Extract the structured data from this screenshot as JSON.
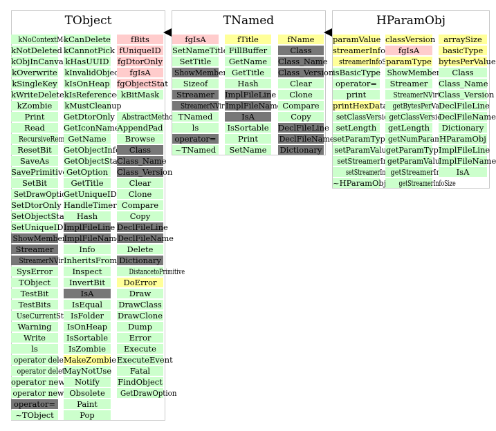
{
  "colors": {
    "public_method": "#ccffcc",
    "protected_method": "#ffcccc",
    "data_member": "#ffff99",
    "class_info": "#777777",
    "border": "#c8c8c8",
    "arrow": "#000000"
  },
  "boxes": [
    {
      "name": "TObject",
      "columns": [
        {
          "items": [
            [
              "kNoContextMenu",
              "green"
            ],
            [
              "kNotDeleted",
              "green"
            ],
            [
              "kObjInCanvas",
              "green"
            ],
            [
              "kOverwrite",
              "green"
            ],
            [
              "kSingleKey",
              "green"
            ],
            [
              "kWriteDelete",
              "green"
            ],
            [
              "kZombie",
              "green"
            ],
            [
              "Print",
              "green"
            ],
            [
              "Read",
              "green"
            ],
            [
              "RecursiveRemove",
              "green"
            ],
            [
              "ResetBit",
              "green"
            ],
            [
              "SaveAs",
              "green"
            ],
            [
              "SavePrimitive",
              "green"
            ],
            [
              "SetBit",
              "green"
            ],
            [
              "SetDrawOption",
              "green"
            ],
            [
              "SetDtorOnly",
              "green"
            ],
            [
              "SetObjectStat",
              "green"
            ],
            [
              "SetUniqueID",
              "green"
            ],
            [
              "ShowMembers",
              "gray"
            ],
            [
              "Streamer",
              "gray"
            ],
            [
              "StreamerNVirtual",
              "gray"
            ],
            [
              "SysError",
              "green"
            ],
            [
              "TObject",
              "green"
            ],
            [
              "TestBit",
              "green"
            ],
            [
              "TestBits",
              "green"
            ],
            [
              "UseCurrentStyle",
              "green"
            ],
            [
              "Warning",
              "green"
            ],
            [
              "Write",
              "green"
            ],
            [
              "ls",
              "green"
            ],
            [
              "operator delete",
              "green"
            ],
            [
              "operator delete[]",
              "green"
            ],
            [
              "operator new",
              "green"
            ],
            [
              "operator new[]",
              "green"
            ],
            [
              "operator=",
              "gray"
            ],
            [
              "~TObject",
              "green"
            ]
          ]
        },
        {
          "items": [
            [
              "kCanDelete",
              "green"
            ],
            [
              "kCannotPick",
              "green"
            ],
            [
              "kHasUUID",
              "green"
            ],
            [
              "kInvalidObject",
              "green"
            ],
            [
              "kIsOnHeap",
              "green"
            ],
            [
              "kIsReferenced",
              "green"
            ],
            [
              "kMustCleanup",
              "green"
            ],
            [
              "GetDtorOnly",
              "green"
            ],
            [
              "GetIconName",
              "green"
            ],
            [
              "GetName",
              "green"
            ],
            [
              "GetObjectInfo",
              "green"
            ],
            [
              "GetObjectStat",
              "green"
            ],
            [
              "GetOption",
              "green"
            ],
            [
              "GetTitle",
              "green"
            ],
            [
              "GetUniqueID",
              "green"
            ],
            [
              "HandleTimer",
              "green"
            ],
            [
              "Hash",
              "green"
            ],
            [
              "ImplFileLine",
              "gray"
            ],
            [
              "ImplFileName",
              "gray"
            ],
            [
              "Info",
              "green"
            ],
            [
              "InheritsFrom",
              "green"
            ],
            [
              "Inspect",
              "green"
            ],
            [
              "InvertBit",
              "green"
            ],
            [
              "IsA",
              "gray"
            ],
            [
              "IsEqual",
              "green"
            ],
            [
              "IsFolder",
              "green"
            ],
            [
              "IsOnHeap",
              "green"
            ],
            [
              "IsSortable",
              "green"
            ],
            [
              "IsZombie",
              "green"
            ],
            [
              "MakeZombie",
              "yellow"
            ],
            [
              "MayNotUse",
              "green"
            ],
            [
              "Notify",
              "green"
            ],
            [
              "Obsolete",
              "green"
            ],
            [
              "Paint",
              "green"
            ],
            [
              "Pop",
              "green"
            ]
          ]
        },
        {
          "items": [
            [
              "fBits",
              "pink"
            ],
            [
              "fUniqueID",
              "pink"
            ],
            [
              "fgDtorOnly",
              "pink"
            ],
            [
              "fgIsA",
              "pink"
            ],
            [
              "fgObjectStat",
              "pink"
            ],
            [
              "kBitMask",
              "green"
            ],
            [
              "",
              ""
            ],
            [
              "AbstractMethod",
              "green"
            ],
            [
              "AppendPad",
              "green"
            ],
            [
              "Browse",
              "green"
            ],
            [
              "Class",
              "gray"
            ],
            [
              "Class_Name",
              "gray"
            ],
            [
              "Class_Version",
              "gray"
            ],
            [
              "Clear",
              "green"
            ],
            [
              "Clone",
              "green"
            ],
            [
              "Compare",
              "green"
            ],
            [
              "Copy",
              "green"
            ],
            [
              "DeclFileLine",
              "gray"
            ],
            [
              "DeclFileName",
              "gray"
            ],
            [
              "Delete",
              "green"
            ],
            [
              "Dictionary",
              "gray"
            ],
            [
              "DistancetoPrimitive",
              "green"
            ],
            [
              "DoError",
              "yellow"
            ],
            [
              "Draw",
              "green"
            ],
            [
              "DrawClass",
              "green"
            ],
            [
              "DrawClone",
              "green"
            ],
            [
              "Dump",
              "green"
            ],
            [
              "Error",
              "green"
            ],
            [
              "Execute",
              "green"
            ],
            [
              "ExecuteEvent",
              "green"
            ],
            [
              "Fatal",
              "green"
            ],
            [
              "FindObject",
              "green"
            ],
            [
              "GetDrawOption",
              "green"
            ]
          ]
        }
      ]
    },
    {
      "name": "TNamed",
      "columns": [
        {
          "items": [
            [
              "fgIsA",
              "pink"
            ],
            [
              "SetNameTitle",
              "green"
            ],
            [
              "SetTitle",
              "green"
            ],
            [
              "ShowMembers",
              "gray"
            ],
            [
              "Sizeof",
              "green"
            ],
            [
              "Streamer",
              "gray"
            ],
            [
              "StreamerNVirtual",
              "gray"
            ],
            [
              "TNamed",
              "green"
            ],
            [
              "ls",
              "green"
            ],
            [
              "operator=",
              "gray"
            ],
            [
              "~TNamed",
              "green"
            ]
          ]
        },
        {
          "items": [
            [
              "fTitle",
              "yellow"
            ],
            [
              "FillBuffer",
              "green"
            ],
            [
              "GetName",
              "green"
            ],
            [
              "GetTitle",
              "green"
            ],
            [
              "Hash",
              "green"
            ],
            [
              "ImplFileLine",
              "gray"
            ],
            [
              "ImplFileName",
              "gray"
            ],
            [
              "IsA",
              "gray"
            ],
            [
              "IsSortable",
              "green"
            ],
            [
              "Print",
              "green"
            ],
            [
              "SetName",
              "green"
            ]
          ]
        },
        {
          "items": [
            [
              "fName",
              "yellow"
            ],
            [
              "Class",
              "gray"
            ],
            [
              "Class_Name",
              "gray"
            ],
            [
              "Class_Version",
              "gray"
            ],
            [
              "Clear",
              "green"
            ],
            [
              "Clone",
              "green"
            ],
            [
              "Compare",
              "green"
            ],
            [
              "Copy",
              "green"
            ],
            [
              "DeclFileLine",
              "gray"
            ],
            [
              "DeclFileName",
              "gray"
            ],
            [
              "Dictionary",
              "gray"
            ]
          ]
        }
      ]
    },
    {
      "name": "HParamObj",
      "columns": [
        {
          "items": [
            [
              "paramValue",
              "yellow"
            ],
            [
              "streamerInfo",
              "yellow"
            ],
            [
              "streamerInfoSize",
              "yellow"
            ],
            [
              "isBasicType",
              "green"
            ],
            [
              "operator=",
              "green"
            ],
            [
              "print",
              "green"
            ],
            [
              "printHexData",
              "yellow"
            ],
            [
              "setClassVersion",
              "green"
            ],
            [
              "setLength",
              "green"
            ],
            [
              "setParamType",
              "green"
            ],
            [
              "setParamValue",
              "green"
            ],
            [
              "setStreamerInfo",
              "green"
            ],
            [
              "setStreamerInfoSize",
              "green"
            ],
            [
              "~HParamObj",
              "green"
            ]
          ]
        },
        {
          "items": [
            [
              "classVersion",
              "yellow"
            ],
            [
              "fgIsA",
              "pink"
            ],
            [
              "paramType",
              "yellow"
            ],
            [
              "ShowMembers",
              "green"
            ],
            [
              "Streamer",
              "green"
            ],
            [
              "StreamerNVirtual",
              "green"
            ],
            [
              "getBytesPerValue",
              "green"
            ],
            [
              "getClassVersion",
              "green"
            ],
            [
              "getLength",
              "green"
            ],
            [
              "getNumParams",
              "green"
            ],
            [
              "getParamType",
              "green"
            ],
            [
              "getParamValue",
              "green"
            ],
            [
              "getStreamerInfo",
              "green"
            ],
            [
              "getStreamerInfoSize",
              "green"
            ]
          ]
        },
        {
          "items": [
            [
              "arraySize",
              "yellow"
            ],
            [
              "basicType",
              "yellow"
            ],
            [
              "bytesPerValue",
              "yellow"
            ],
            [
              "Class",
              "green"
            ],
            [
              "Class_Name",
              "green"
            ],
            [
              "Class_Version",
              "green"
            ],
            [
              "DeclFileLine",
              "green"
            ],
            [
              "DeclFileName",
              "green"
            ],
            [
              "Dictionary",
              "green"
            ],
            [
              "HParamObj",
              "green"
            ],
            [
              "ImplFileLine",
              "green"
            ],
            [
              "ImplFileName",
              "green"
            ],
            [
              "IsA",
              "green"
            ]
          ]
        }
      ]
    }
  ]
}
